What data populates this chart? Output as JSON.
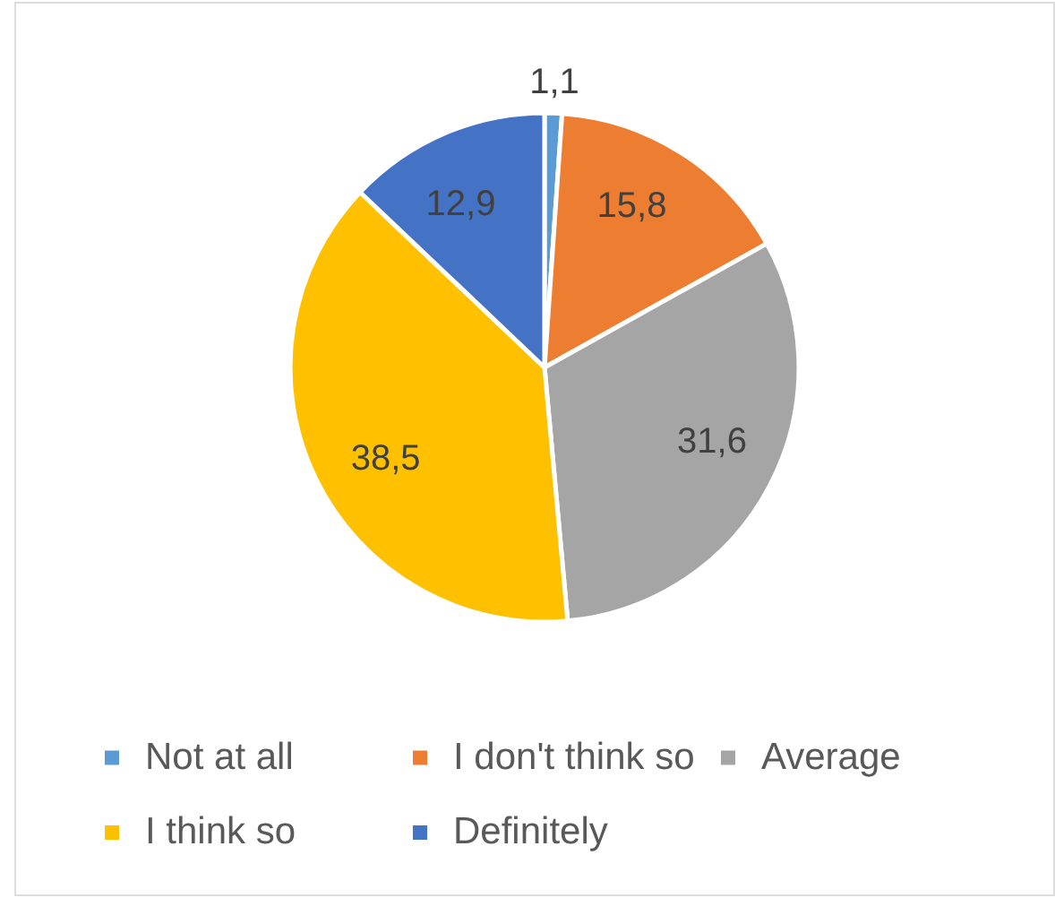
{
  "chart_data": {
    "type": "pie",
    "categories": [
      "Not at all",
      "I don't think so",
      "Average",
      "I think so",
      "Definitely"
    ],
    "values": [
      1.1,
      15.8,
      31.6,
      38.5,
      12.9
    ],
    "colors": [
      "#5b9bd5",
      "#ed7d31",
      "#a5a5a5",
      "#ffc000",
      "#4472c4"
    ],
    "value_labels": [
      "1,1",
      "15,8",
      "31,6",
      "38,5",
      "12,9"
    ],
    "legend": "bottom"
  }
}
